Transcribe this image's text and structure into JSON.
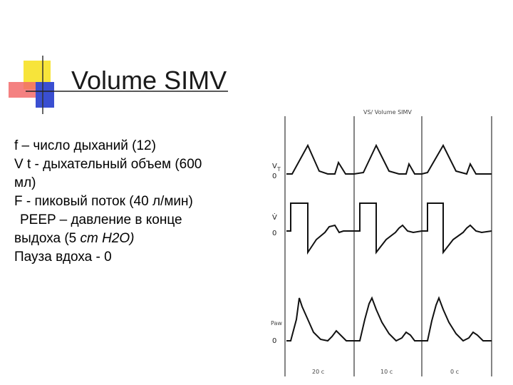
{
  "slide": {
    "title": "Volume SIMV",
    "bullets": {
      "f": "f – число дыханий (12)",
      "vt_1": "V t - дыхательный объем (600",
      "vt_2": "мл)",
      "flow": "F   - пиковый поток (40 л/мин)",
      "peep_1": "PEEP – давление в конце",
      "peep_2a": "выдоха (5 ",
      "peep_2b": "cm H2O)",
      "pause": "Пауза вдоха - 0"
    }
  },
  "waveforms": {
    "header": "VS/ Volume SIMV",
    "channels": [
      {
        "label": "V",
        "sub": "T",
        "zero": "0"
      },
      {
        "label": "V̇",
        "zero": "0"
      },
      {
        "label": "Paw",
        "zero": "0"
      }
    ],
    "time_labels": [
      "20 c",
      "10 c",
      "0 c"
    ]
  },
  "colors": {
    "deco_yellow": "#f7e43a",
    "deco_red": "#f26b6b",
    "deco_blue": "#3a4fd1",
    "rule": "#222222"
  }
}
